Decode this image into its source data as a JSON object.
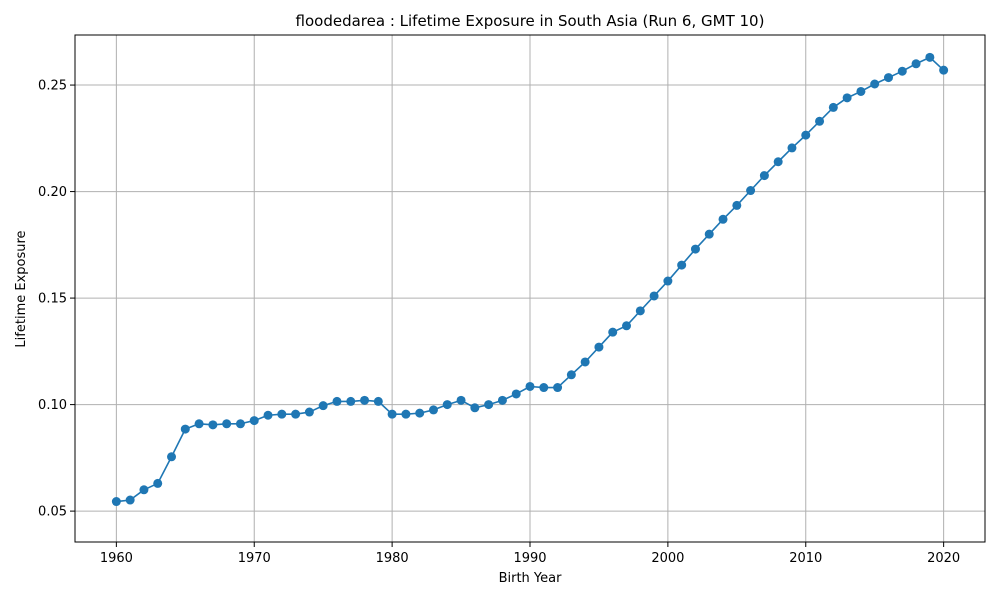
{
  "chart_data": {
    "type": "line",
    "title": "floodedarea : Lifetime Exposure in South Asia (Run 6, GMT 10)",
    "xlabel": "Birth Year",
    "ylabel": "Lifetime Exposure",
    "xlim": [
      1957,
      2023
    ],
    "ylim": [
      0.0355,
      0.2735
    ],
    "xticks": [
      1960,
      1970,
      1980,
      1990,
      2000,
      2010,
      2020
    ],
    "xtick_labels": [
      "1960",
      "1970",
      "1980",
      "1990",
      "2000",
      "2010",
      "2020"
    ],
    "yticks": [
      0.05,
      0.1,
      0.15,
      0.2,
      0.25
    ],
    "ytick_labels": [
      "0.05",
      "0.10",
      "0.15",
      "0.20",
      "0.25"
    ],
    "grid": true,
    "legend": false,
    "color": "#1f77b4",
    "marker": "circle",
    "x": [
      1960,
      1961,
      1962,
      1963,
      1964,
      1965,
      1966,
      1967,
      1968,
      1969,
      1970,
      1971,
      1972,
      1973,
      1974,
      1975,
      1976,
      1977,
      1978,
      1979,
      1980,
      1981,
      1982,
      1983,
      1984,
      1985,
      1986,
      1987,
      1988,
      1989,
      1990,
      1991,
      1992,
      1993,
      1994,
      1995,
      1996,
      1997,
      1998,
      1999,
      2000,
      2001,
      2002,
      2003,
      2004,
      2005,
      2006,
      2007,
      2008,
      2009,
      2010,
      2011,
      2012,
      2013,
      2014,
      2015,
      2016,
      2017,
      2018,
      2019,
      2020
    ],
    "y": [
      0.0545,
      0.0552,
      0.06,
      0.063,
      0.0755,
      0.0885,
      0.091,
      0.0905,
      0.091,
      0.091,
      0.0925,
      0.095,
      0.0955,
      0.0955,
      0.0965,
      0.0995,
      0.1015,
      0.1015,
      0.102,
      0.1015,
      0.0955,
      0.0955,
      0.096,
      0.0975,
      0.1,
      0.102,
      0.0985,
      0.1,
      0.102,
      0.105,
      0.1085,
      0.108,
      0.108,
      0.114,
      0.12,
      0.127,
      0.134,
      0.137,
      0.144,
      0.151,
      0.158,
      0.1655,
      0.173,
      0.18,
      0.187,
      0.1935,
      0.2005,
      0.2075,
      0.214,
      0.2205,
      0.2265,
      0.233,
      0.2395,
      0.244,
      0.247,
      0.2505,
      0.2535,
      0.2565,
      0.26,
      0.263,
      0.257
    ]
  }
}
